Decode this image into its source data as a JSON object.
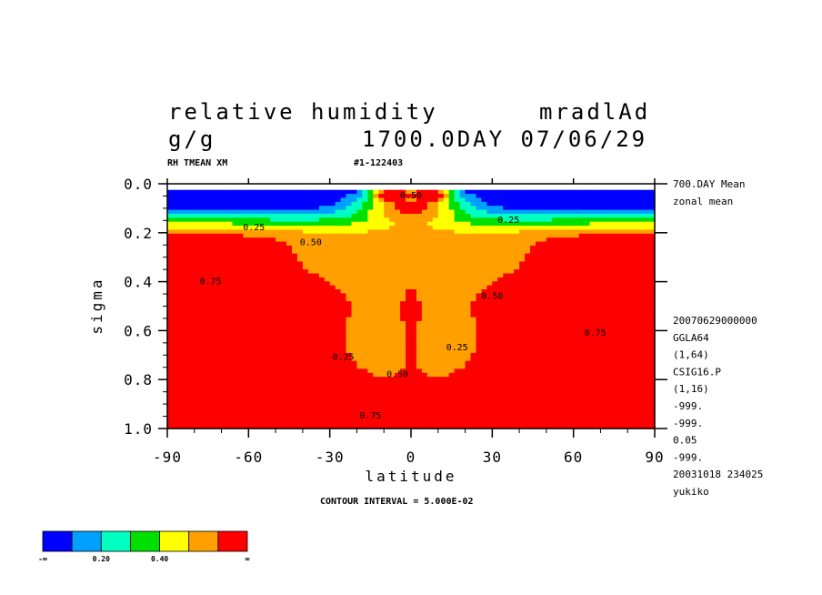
{
  "header": {
    "variable": "relative humidity",
    "run": "mradlAd",
    "units": "g/g",
    "date": "1700.0DAY 07/06/29",
    "sub_left": "RH TMEAN XM",
    "sub_mid": "#1-122403",
    "contour_interval": "CONTOUR INTERVAL = 5.000E-02"
  },
  "side_top": [
    "700.DAY Mean",
    "zonal mean"
  ],
  "side_bottom": [
    "20070629000000",
    "GGLA64",
    "(1,64)",
    "CSIG16.P",
    "(1,16)",
    "-999.",
    "-999.",
    "0.05",
    "-999.",
    "20031018 234025",
    "yukiko"
  ],
  "colorbar": {
    "colors": [
      "#0000ff",
      "#00a0ff",
      "#00ffc0",
      "#00e000",
      "#ffff00",
      "#ffa000",
      "#ff0000"
    ],
    "labels": [
      "-∞",
      "0.20",
      "0.40",
      "∞"
    ]
  },
  "chart_data": {
    "type": "heatmap",
    "xlabel": "latitude",
    "ylabel": "sigma",
    "xlim": [
      -90,
      90
    ],
    "ylim": [
      1.0,
      0.0
    ],
    "xticks": [
      -90,
      -60,
      -30,
      0,
      30,
      60,
      90
    ],
    "xtick_labels": [
      "-90",
      "-60",
      "-30",
      "0",
      "30",
      "60",
      "90"
    ],
    "yticks": [
      0.0,
      0.2,
      0.4,
      0.6,
      0.8,
      1.0
    ],
    "ytick_labels": [
      "0.0",
      "0.2",
      "0.4",
      "0.6",
      "0.8",
      "1.0"
    ],
    "levels": [
      0.2,
      0.3,
      0.4,
      0.5,
      0.6
    ],
    "contour_labels": [
      {
        "text": "0.25",
        "lat": -58,
        "sigma": 0.19
      },
      {
        "text": "0.50",
        "lat": -37,
        "sigma": 0.25
      },
      {
        "text": "0.75",
        "lat": -74,
        "sigma": 0.41
      },
      {
        "text": "0.25",
        "lat": 36,
        "sigma": 0.16
      },
      {
        "text": "0.50",
        "lat": 30,
        "sigma": 0.47
      },
      {
        "text": "0.75",
        "lat": 68,
        "sigma": 0.62
      },
      {
        "text": "0.25",
        "lat": -25,
        "sigma": 0.72
      },
      {
        "text": "0.50",
        "lat": -5,
        "sigma": 0.79
      },
      {
        "text": "0.25",
        "lat": 17,
        "sigma": 0.68
      },
      {
        "text": "0.75",
        "lat": -15,
        "sigma": 0.96
      },
      {
        "text": "0.50",
        "lat": 0,
        "sigma": 0.06
      }
    ]
  }
}
